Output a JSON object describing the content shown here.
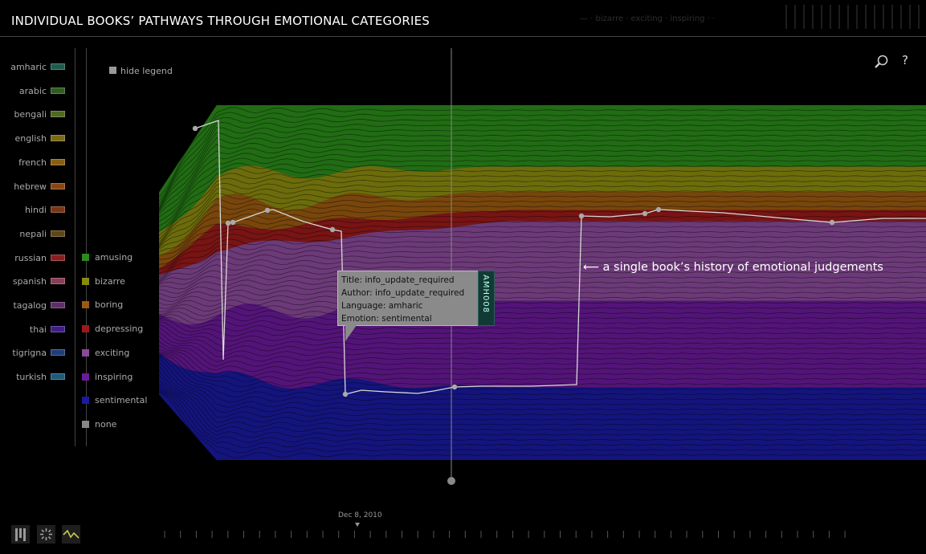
{
  "header": {
    "title": "INDIVIDUAL BOOKS’ PATHWAYS THROUGH EMOTIONAL CATEGORIES",
    "faint_text": "— · bizarre · exciting · inspiring  · ·"
  },
  "legend": {
    "hide_label": "hide legend",
    "languages": [
      {
        "name": "amharic",
        "color": "#1f5a4e"
      },
      {
        "name": "arabic",
        "color": "#2d5e1e"
      },
      {
        "name": "bengali",
        "color": "#4f6a1e"
      },
      {
        "name": "english",
        "color": "#7a6a14"
      },
      {
        "name": "french",
        "color": "#8a5e10"
      },
      {
        "name": "hebrew",
        "color": "#8a4612"
      },
      {
        "name": "hindi",
        "color": "#7a3612"
      },
      {
        "name": "nepali",
        "color": "#5e4616"
      },
      {
        "name": "russian",
        "color": "#8a1e1e"
      },
      {
        "name": "spanish",
        "color": "#8a3e5a"
      },
      {
        "name": "tagalog",
        "color": "#5e2e6a"
      },
      {
        "name": "thai",
        "color": "#3e1e8a"
      },
      {
        "name": "tigrigna",
        "color": "#1e3e7a"
      },
      {
        "name": "turkish",
        "color": "#1e5a7a"
      }
    ],
    "emotions": [
      {
        "name": "amusing",
        "color": "#2a8a1a"
      },
      {
        "name": "bizarre",
        "color": "#8a8a10"
      },
      {
        "name": "boring",
        "color": "#9a5a10"
      },
      {
        "name": "depressing",
        "color": "#9a1a1a"
      },
      {
        "name": "exciting",
        "color": "#8a4a9a"
      },
      {
        "name": "inspiring",
        "color": "#6a1a9a"
      },
      {
        "name": "sentimental",
        "color": "#1a1aa0"
      },
      {
        "name": "none",
        "color": "#888888"
      }
    ]
  },
  "tooltip": {
    "title": "Title: info_update_required",
    "author": "Author: info_update_required",
    "language": "Language: amharic",
    "emotion": "Emotion: sentimental",
    "tab": "AMH008"
  },
  "annotation": "a single book’s history of emotional judgements",
  "timeline": {
    "date": "Dec 8, 2010"
  },
  "toolbar": {
    "search_icon": "magnifier",
    "help_label": "?"
  },
  "chart_data": {
    "type": "area",
    "title": "INDIVIDUAL BOOKS’ PATHWAYS THROUGH EMOTIONAL CATEGORIES",
    "stack_order_top_to_bottom": [
      "amusing",
      "bizarre",
      "boring",
      "depressing",
      "exciting",
      "inspiring",
      "sentimental"
    ],
    "final_shares": [
      0.17,
      0.07,
      0.05,
      0.03,
      0.22,
      0.24,
      0.2
    ],
    "early_shares": [
      0.2,
      0.09,
      0.07,
      0.06,
      0.18,
      0.17,
      0.23
    ],
    "highlighted_book": {
      "language": "amharic",
      "path": [
        "amusing",
        "exciting",
        "sentimental",
        "exciting"
      ]
    }
  }
}
